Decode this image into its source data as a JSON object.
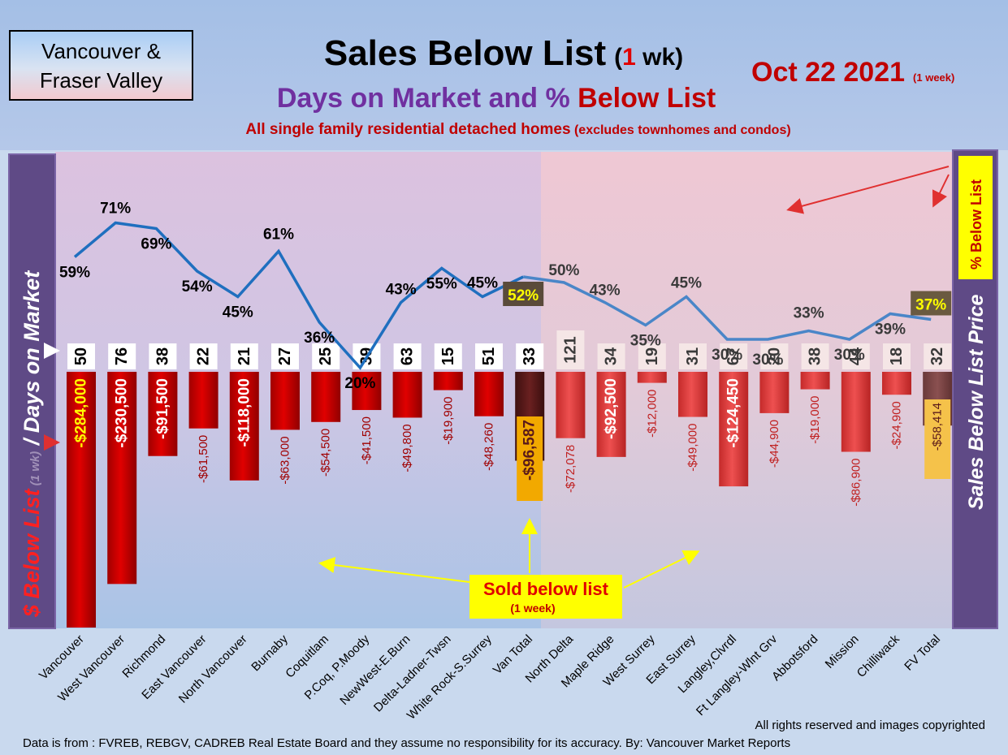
{
  "header": {
    "region_box": [
      "Vancouver &",
      "Fraser Valley"
    ],
    "title": "Sales Below List",
    "title_period_open": "(",
    "title_period_num": "1",
    "title_period_rest": " wk)",
    "subtitle_part1": "Days on Market and % ",
    "subtitle_part2": "Below List",
    "note": "All single family residential detached homes",
    "note_small": " (excludes townhomes and condos)",
    "date": "Oct 22  2021",
    "date_small": "(1 week)"
  },
  "left_axis": {
    "part1": "$ Below List",
    "part2": " (1 wk)",
    "part3": " / Days on Market"
  },
  "right_axis": "Sales Below List Price",
  "pct_legend": "% Below List",
  "annotation": {
    "line1": "Sold below list",
    "line2": "(1 week)"
  },
  "footer": {
    "rights": "All rights reserved and  images copyrighted",
    "source": "Data is from : FVREB, REBGV, CADREB Real Estate Board and they assume no responsibility for its accuracy. By: Vancouver Market Reports"
  },
  "colors": {
    "bar_red": "#cc0000",
    "bar_total_van": "#5a1a1a",
    "bar_fraser": "#e03c3c",
    "line_blue": "#1f6fbf",
    "title_purple": "#7030a0",
    "accent_red": "#c00000",
    "highlight_yellow": "#ffff00"
  },
  "chart_data": {
    "type": "bar",
    "categories": [
      "Vancouver",
      "West Vancouver",
      "Richmond",
      "East Vancouver",
      "North Vancouver",
      "Burnaby",
      "Coquitlam",
      "P.Coq, P.Moody",
      "NewWest-E.Burn",
      "Delta-Ladner-Twsn",
      "White Rock-S.Surrey",
      "Van Total",
      "North Delta",
      "Maple Ridge",
      "West Surrey",
      "East Surrey",
      "Langley,Clvrdl",
      "Ft Langley-Wlnt Grv",
      "Abbotsford",
      "Mission",
      "Chilliwack",
      "FV Total"
    ],
    "series": [
      {
        "name": "$ Below List",
        "values": [
          -284000,
          -230500,
          -91500,
          -61500,
          -118000,
          -63000,
          -54500,
          -41500,
          -49800,
          -19900,
          -48260,
          -96587,
          -72078,
          -92500,
          -12000,
          -49000,
          -124450,
          -44900,
          -19000,
          -86900,
          -24900,
          -58414
        ],
        "labels": [
          "-$284,000",
          "-$230,500",
          "-$91,500",
          "-$61,500",
          "-$118,000",
          "-$63,000",
          "-$54,500",
          "-$41,500",
          "-$49,800",
          "-$19,900",
          "-$48,260",
          "-$96,587",
          "-$72,078",
          "-$92,500",
          "-$12,000",
          "-$49,000",
          "-$124,450",
          "-$44,900",
          "-$19,000",
          "-$86,900",
          "-$24,900",
          "-$58,414"
        ]
      },
      {
        "name": "% Below List",
        "values": [
          59,
          71,
          69,
          54,
          45,
          61,
          36,
          20,
          43,
          55,
          45,
          52,
          50,
          43,
          35,
          45,
          30,
          30,
          33,
          30,
          39,
          37
        ],
        "labels": [
          "59%",
          "71%",
          "69%",
          "54%",
          "45%",
          "61%",
          "36%",
          "20%",
          "43%",
          "55%",
          "45%",
          "52%",
          "50%",
          "43%",
          "35%",
          "45%",
          "30%",
          "30%",
          "33%",
          "30%",
          "39%",
          "37%"
        ]
      },
      {
        "name": "Days on Market",
        "values": [
          50,
          76,
          38,
          22,
          21,
          27,
          25,
          39,
          63,
          15,
          51,
          33,
          121,
          34,
          19,
          31,
          67,
          20,
          38,
          44,
          18,
          32
        ]
      }
    ]
  }
}
